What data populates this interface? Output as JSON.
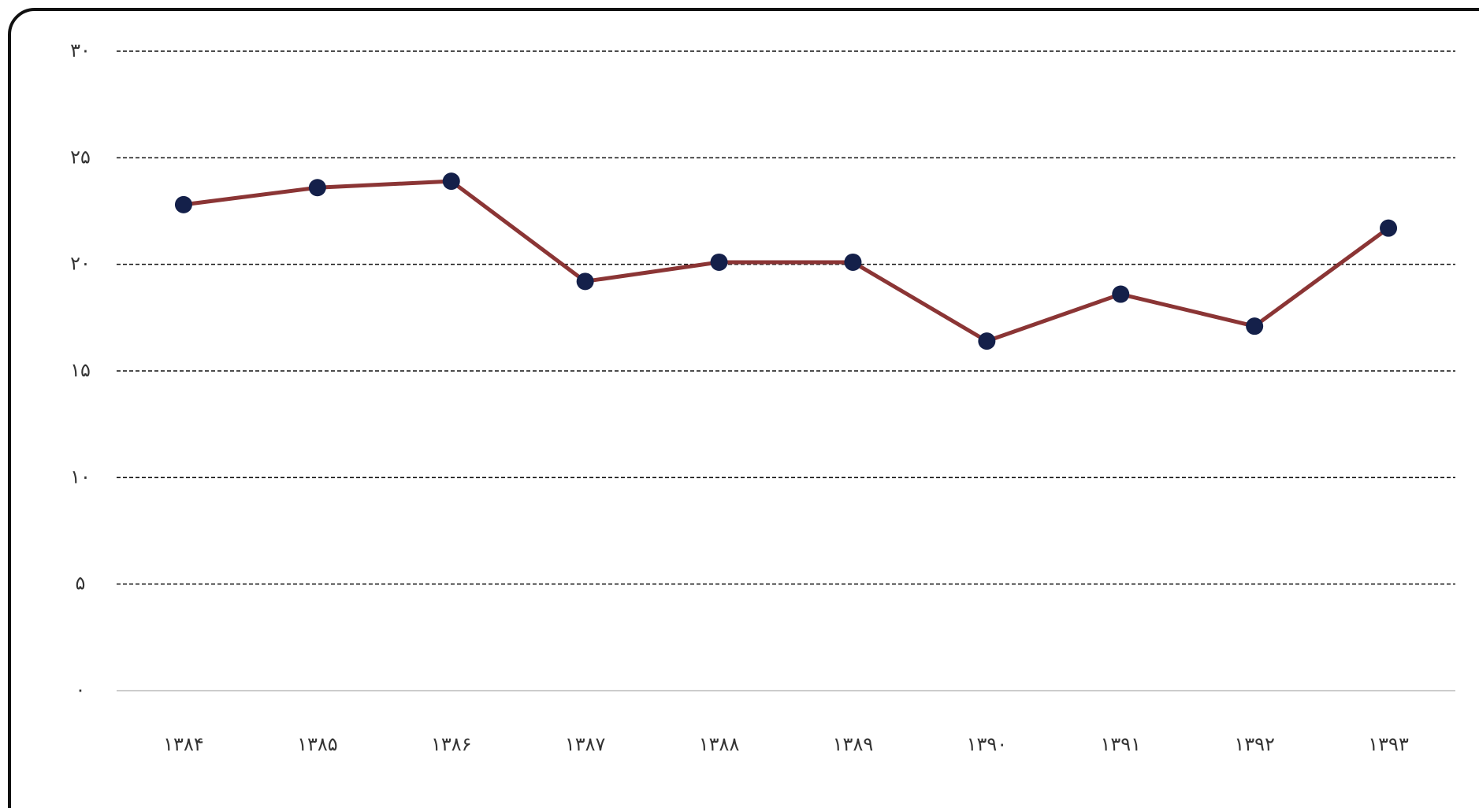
{
  "chart_data": {
    "type": "line",
    "categories": [
      "۱۳۸۴",
      "۱۳۸۵",
      "۱۳۸۶",
      "۱۳۸۷",
      "۱۳۸۸",
      "۱۳۸۹",
      "۱۳۹۰",
      "۱۳۹۱",
      "۱۳۹۲",
      "۱۳۹۳"
    ],
    "series": [
      {
        "color": "#8b3535",
        "marker_color": "#14204a",
        "values": [
          22.8,
          23.6,
          23.9,
          19.2,
          20.1,
          20.1,
          16.4,
          18.6,
          17.1,
          21.7
        ]
      }
    ],
    "ylim": [
      0,
      30
    ],
    "yticks": [
      {
        "value": 0,
        "label": "۰"
      },
      {
        "value": 5,
        "label": "۵"
      },
      {
        "value": 10,
        "label": "۱۰"
      },
      {
        "value": 15,
        "label": "۱۵"
      },
      {
        "value": 20,
        "label": "۲۰"
      },
      {
        "value": 25,
        "label": "۲۵"
      },
      {
        "value": 30,
        "label": "۳۰"
      }
    ],
    "grid": true
  }
}
